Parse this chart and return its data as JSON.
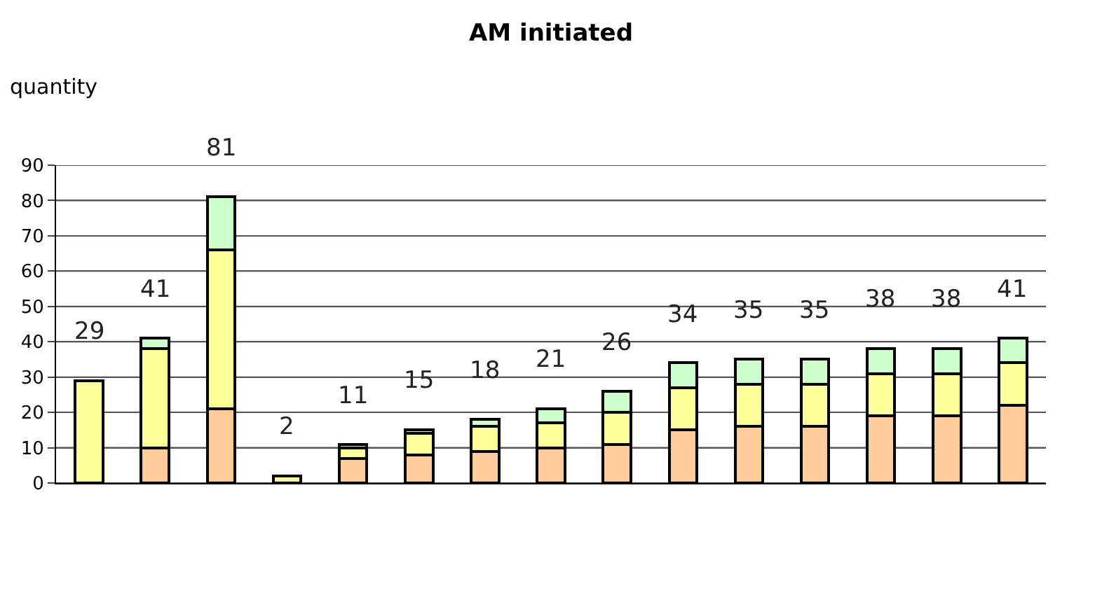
{
  "chart_data": {
    "type": "bar",
    "title": "AM initiated",
    "ylabel": "quantity",
    "categories": [
      null,
      null,
      null,
      null,
      null,
      null,
      null,
      null,
      null,
      null,
      null,
      null,
      null,
      null,
      null
    ],
    "stacked": true,
    "series": [
      {
        "color": "#ffcc99",
        "values": [
          null,
          10,
          21,
          null,
          7,
          8,
          9,
          10,
          11,
          15,
          16,
          16,
          19,
          19,
          22
        ]
      },
      {
        "color": "#ffff99",
        "values": [
          29,
          28,
          45,
          2,
          3,
          6,
          7,
          7,
          9,
          12,
          12,
          12,
          12,
          12,
          12
        ]
      },
      {
        "color": "#ccffcc",
        "values": [
          null,
          3,
          15,
          null,
          1,
          1,
          2,
          4,
          6,
          7,
          7,
          7,
          7,
          7,
          7
        ]
      }
    ],
    "totals": [
      "29",
      "41",
      "81",
      "2",
      "11",
      "15",
      "18",
      "21",
      "26",
      "34",
      "35",
      "35",
      "38",
      "38",
      "41"
    ],
    "ylim": [
      0,
      90
    ],
    "yticks": [
      0,
      10,
      20,
      30,
      40,
      50,
      60,
      70,
      80,
      90
    ],
    "grid": "y"
  }
}
